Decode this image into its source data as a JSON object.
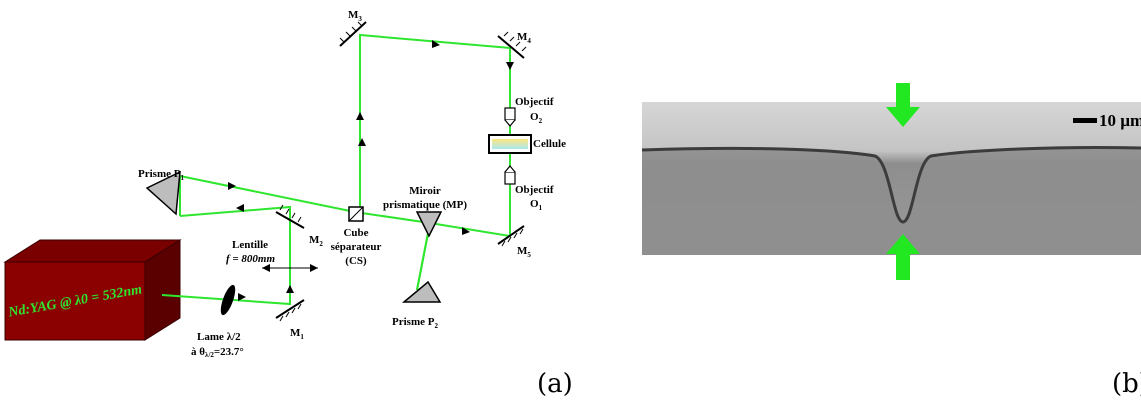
{
  "diagram_a": {
    "panel_label": "(a)",
    "laser_label": "Nd:YAG @ λ0 = 532nm",
    "mirrors": {
      "m1": {
        "main": "M",
        "sub": "1"
      },
      "m2": {
        "main": "M",
        "sub": "2"
      },
      "m3": {
        "main": "M",
        "sub": "3"
      },
      "m4": {
        "main": "M",
        "sub": "4"
      },
      "m5": {
        "main": "M",
        "sub": "5"
      }
    },
    "lame": {
      "line1": "Lame λ/2",
      "line2_main": "à θ",
      "line2_sub": "λ/2",
      "line2_rest": "=23.7°"
    },
    "lentille": {
      "line1": "Lentille",
      "line2": "f = 800mm"
    },
    "prisme_p1": {
      "main": "Prisme P",
      "sub": "1"
    },
    "prisme_p2": {
      "main": "Prisme P",
      "sub": "2"
    },
    "cube": {
      "line1": "Cube",
      "line2": "séparateur",
      "line3": "(CS)"
    },
    "miroir": {
      "line1": "Miroir",
      "line2": "prismatique (MP)"
    },
    "objectif_o2": {
      "line1": "Objectif",
      "main": "O",
      "sub": "2"
    },
    "objectif_o1": {
      "line1": "Objectif",
      "main": "O",
      "sub": "1"
    },
    "cellule": "Cellule"
  },
  "image_b": {
    "panel_label": "(b)",
    "scale_bar": "10 µm",
    "colors": {
      "arrow": "#22e822",
      "background": "#9a9a9a"
    }
  }
}
